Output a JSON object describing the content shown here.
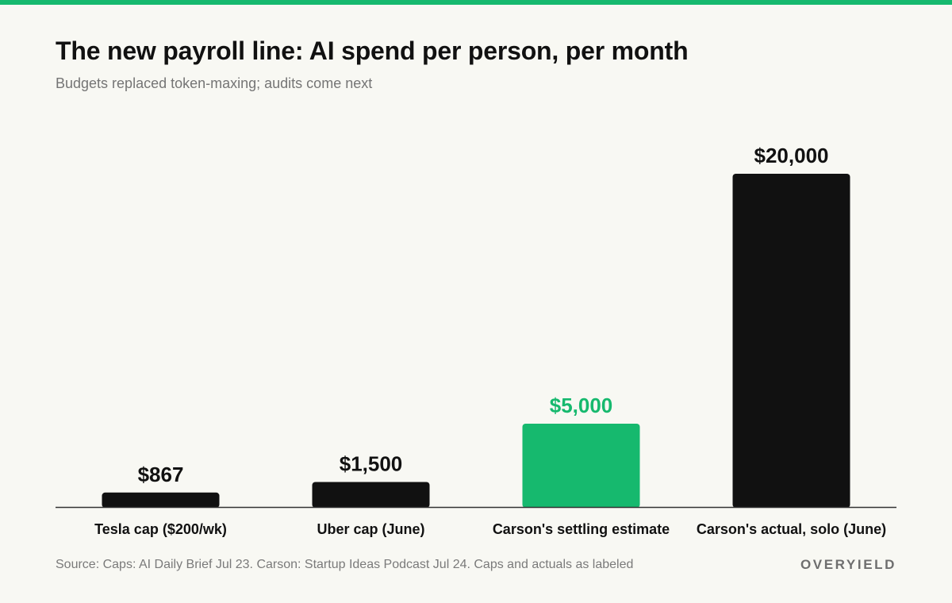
{
  "header": {
    "title": "The new payroll line: AI spend per person, per month",
    "subtitle": "Budgets replaced token-maxing; audits come next"
  },
  "footer": {
    "source": "Source: Caps: AI Daily Brief Jul 23. Carson: Startup Ideas Podcast Jul 24. Caps and actuals as labeled",
    "brand": "OVERYIELD"
  },
  "colors": {
    "accent": "#16b96e",
    "bar_default": "#111111",
    "background": "#f8f8f3",
    "baseline": "#333333"
  },
  "chart_data": {
    "type": "bar",
    "title": "The new payroll line: AI spend per person, per month",
    "subtitle": "Budgets replaced token-maxing; audits come next",
    "xlabel": "",
    "ylabel": "",
    "categories": [
      "Tesla cap ($200/wk)",
      "Uber cap (June)",
      "Carson's settling estimate",
      "Carson's actual, solo (June)"
    ],
    "values": [
      867,
      1500,
      5000,
      20000
    ],
    "value_labels": [
      "$867",
      "$1,500",
      "$5,000",
      "$20,000"
    ],
    "highlight_index": 2,
    "ylim": [
      0,
      20000
    ],
    "grid": false,
    "legend": "none"
  }
}
